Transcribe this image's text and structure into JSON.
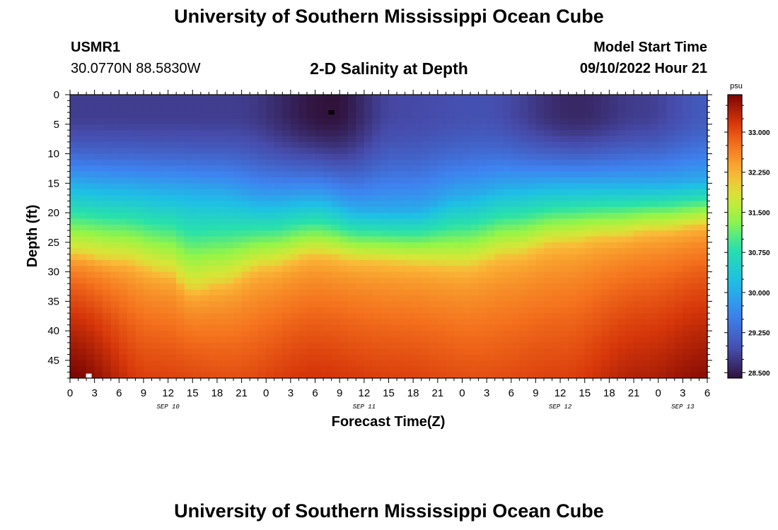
{
  "header": {
    "title": "University of Southern Mississippi Ocean Cube",
    "station_id": "USMR1",
    "location": "30.0770N  88.5830W",
    "plot_title": "2-D Salinity at Depth",
    "model_start_label": "Model Start Time",
    "model_start_value": "09/10/2022 Hour 21"
  },
  "footer": {
    "title": "University of Southern Mississippi Ocean Cube"
  },
  "chart_data": {
    "type": "heatmap",
    "title": "2-D Salinity at Depth",
    "xlabel": "Forecast Time(Z)",
    "ylabel": "Depth (ft)",
    "x_unit": "hours since Sep 10 00Z",
    "xlim": [
      0,
      78
    ],
    "ylim": [
      48,
      0
    ],
    "x_ticks": [
      0,
      3,
      6,
      9,
      12,
      15,
      18,
      21,
      24,
      27,
      30,
      33,
      36,
      39,
      42,
      45,
      48,
      51,
      54,
      57,
      60,
      63,
      66,
      69,
      72,
      75,
      78
    ],
    "x_tick_labels": [
      "0",
      "3",
      "6",
      "9",
      "12",
      "15",
      "18",
      "21",
      "0",
      "3",
      "6",
      "9",
      "12",
      "15",
      "18",
      "21",
      "0",
      "3",
      "6",
      "9",
      "12",
      "15",
      "18",
      "21",
      "0",
      "3",
      "6"
    ],
    "y_ticks": [
      0,
      5,
      10,
      15,
      20,
      25,
      30,
      35,
      40,
      45
    ],
    "y_tick_labels": [
      "0",
      "5",
      "10",
      "15",
      "20",
      "25",
      "30",
      "35",
      "40",
      "45"
    ],
    "date_labels": [
      {
        "text": "SEP 10",
        "x": 12
      },
      {
        "text": "SEP 11",
        "x": 36
      },
      {
        "text": "SEP 12",
        "x": 60
      },
      {
        "text": "SEP 13",
        "x": 75
      }
    ],
    "colorbar": {
      "unit": "psu",
      "min": 28.4,
      "max": 33.7,
      "ticks": [
        28.5,
        29.25,
        30.0,
        30.75,
        31.5,
        32.25,
        33.0
      ],
      "tick_labels": [
        "28.500",
        "29.250",
        "30.000",
        "30.750",
        "31.500",
        "32.250",
        "33.000"
      ]
    },
    "isohaline_depth_30psu": {
      "hours": [
        0,
        6,
        12,
        18,
        24,
        30,
        36,
        42,
        48,
        54,
        60,
        66,
        72,
        78
      ],
      "depth_ft": [
        15,
        15.5,
        16,
        16.5,
        18,
        17.5,
        19.5,
        19.5,
        17,
        15.5,
        15,
        15,
        15,
        14.5
      ]
    },
    "isohaline_depth_32psu": {
      "hours": [
        0,
        6,
        12,
        15,
        18,
        24,
        30,
        36,
        42,
        48,
        54,
        60,
        66,
        72,
        78
      ],
      "depth_ft": [
        27,
        28,
        30,
        33,
        32,
        29,
        27,
        28,
        28.5,
        29,
        27,
        25,
        24,
        23,
        22
      ]
    },
    "surface_min_salinity": {
      "hours": [
        0,
        10,
        20,
        32,
        40,
        50,
        62,
        70,
        78
      ],
      "psu": [
        28.8,
        28.8,
        28.8,
        28.4,
        28.9,
        29.0,
        28.6,
        28.8,
        29.1
      ]
    },
    "bottom_max_salinity": {
      "hours": [
        0,
        10,
        20,
        30,
        40,
        50,
        60,
        70,
        78
      ],
      "psu": [
        33.7,
        33.1,
        33.0,
        33.2,
        33.1,
        33.0,
        33.1,
        33.4,
        33.6
      ]
    },
    "markers": [
      {
        "name": "min-marker",
        "hour": 32,
        "depth": 3,
        "color": "#000000"
      },
      {
        "name": "max-marker",
        "hour": 2.3,
        "depth": 47.6,
        "color": "#ffffff"
      }
    ]
  }
}
